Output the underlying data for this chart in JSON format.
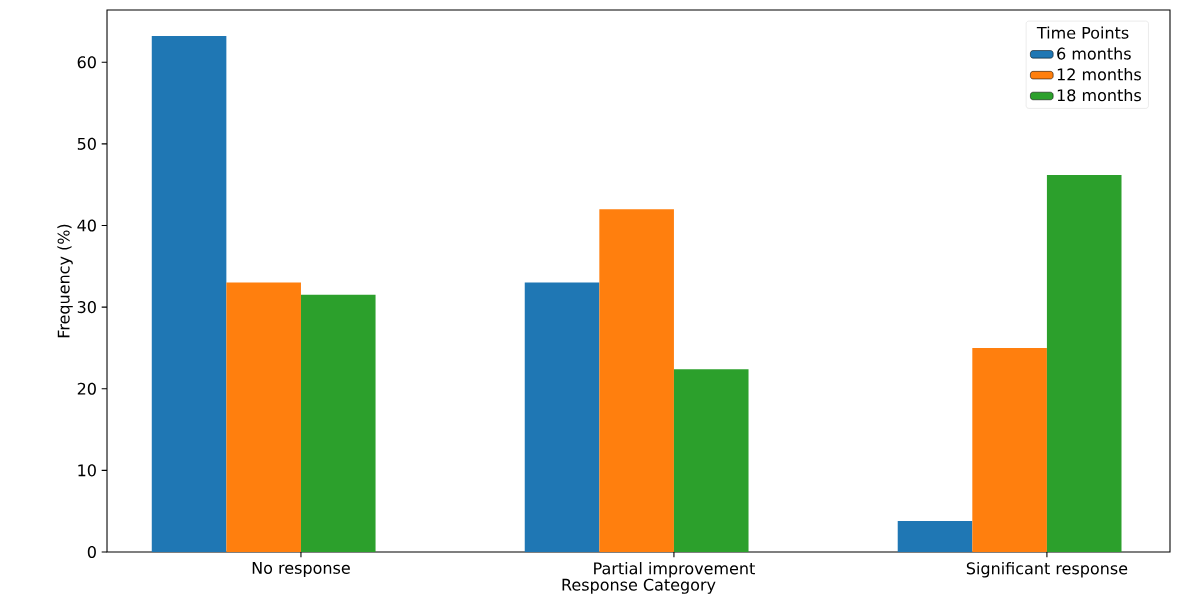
{
  "chart_data": {
    "type": "bar",
    "xlabel": "Response Category",
    "ylabel": "Frequency (%)",
    "legend_title": "Time Points",
    "categories": [
      "No response",
      "Partial improvement",
      "Significant response"
    ],
    "series": [
      {
        "name": "6 months",
        "color": "#1f77b4",
        "values": [
          63.2,
          33,
          3.8
        ]
      },
      {
        "name": "12 months",
        "color": "#ff7f0e",
        "values": [
          33,
          42,
          25
        ]
      },
      {
        "name": "18 months",
        "color": "#2ca02c",
        "values": [
          31.5,
          22.4,
          46.2
        ]
      }
    ],
    "ylim": [
      0,
      66.4
    ],
    "yticks": [
      0,
      10,
      20,
      30,
      40,
      50,
      60
    ],
    "grid": false,
    "legend": "top right"
  }
}
